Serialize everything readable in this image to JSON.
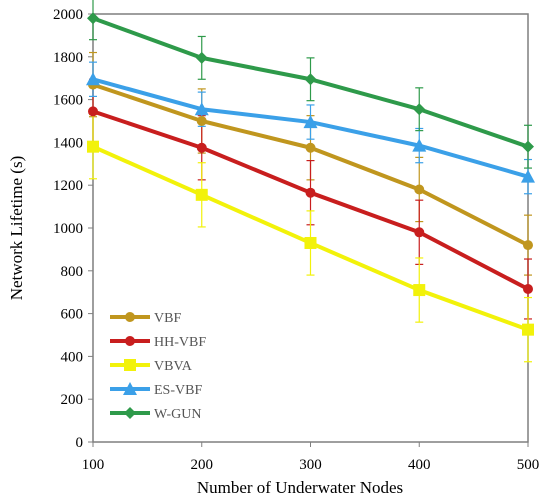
{
  "chart_data": {
    "type": "line",
    "title": "",
    "xlabel": "Number of Underwater Nodes",
    "ylabel": "Network Lifetime (s)",
    "x": [
      100,
      200,
      300,
      400,
      500
    ],
    "xlim": [
      100,
      500
    ],
    "ylim": [
      0,
      2000
    ],
    "yticks": [
      0,
      200,
      400,
      600,
      800,
      1000,
      1200,
      1400,
      1600,
      1800,
      2000
    ],
    "xticks": [
      100,
      200,
      300,
      400,
      500
    ],
    "grid": false,
    "legend_position": "bottom-left",
    "series": [
      {
        "name": "VBF",
        "color": "#C0961E",
        "marker": "circle",
        "values": [
          1670,
          1500,
          1375,
          1180,
          920
        ],
        "error": [
          150,
          150,
          150,
          150,
          140
        ]
      },
      {
        "name": "HH-VBF",
        "color": "#C81E1E",
        "marker": "circle",
        "values": [
          1545,
          1375,
          1165,
          980,
          715
        ],
        "error": [
          150,
          150,
          150,
          150,
          140
        ]
      },
      {
        "name": "VBVA",
        "color": "#F2F20A",
        "marker": "square",
        "values": [
          1380,
          1155,
          930,
          710,
          525
        ],
        "error": [
          150,
          150,
          150,
          150,
          150
        ]
      },
      {
        "name": "ES-VBF",
        "color": "#3BA0E8",
        "marker": "triangle",
        "values": [
          1695,
          1555,
          1495,
          1385,
          1240
        ],
        "error": [
          80,
          80,
          80,
          80,
          80
        ]
      },
      {
        "name": "W-GUN",
        "color": "#2E9A4A",
        "marker": "diamond",
        "values": [
          1980,
          1795,
          1695,
          1555,
          1380
        ],
        "error": [
          100,
          100,
          100,
          100,
          100
        ]
      }
    ]
  }
}
